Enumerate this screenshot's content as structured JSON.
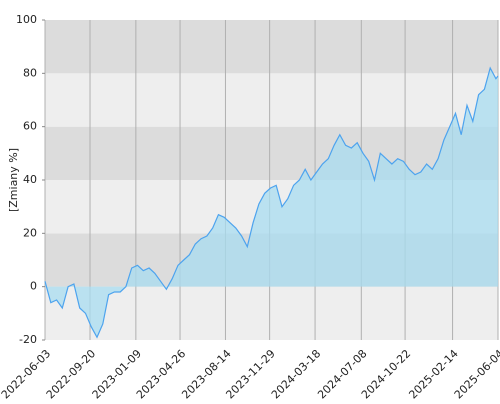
{
  "chart_data": {
    "type": "area",
    "y_label": "[Zmiany %]",
    "x": [
      "2022-06-03",
      "2022-06-17",
      "2022-07-01",
      "2022-07-15",
      "2022-07-29",
      "2022-08-12",
      "2022-08-26",
      "2022-09-09",
      "2022-09-23",
      "2022-10-07",
      "2022-10-21",
      "2022-11-04",
      "2022-11-18",
      "2022-12-02",
      "2022-12-16",
      "2022-12-30",
      "2023-01-13",
      "2023-01-27",
      "2023-02-10",
      "2023-02-24",
      "2023-03-10",
      "2023-03-24",
      "2023-04-07",
      "2023-04-21",
      "2023-05-05",
      "2023-05-19",
      "2023-06-02",
      "2023-06-16",
      "2023-06-30",
      "2023-07-14",
      "2023-07-28",
      "2023-08-11",
      "2023-08-25",
      "2023-09-08",
      "2023-09-22",
      "2023-10-06",
      "2023-10-20",
      "2023-11-03",
      "2023-11-17",
      "2023-12-01",
      "2023-12-15",
      "2023-12-29",
      "2024-01-12",
      "2024-01-26",
      "2024-02-09",
      "2024-02-23",
      "2024-03-08",
      "2024-03-22",
      "2024-04-05",
      "2024-04-19",
      "2024-05-03",
      "2024-05-17",
      "2024-05-31",
      "2024-06-14",
      "2024-06-28",
      "2024-07-12",
      "2024-07-26",
      "2024-08-09",
      "2024-08-23",
      "2024-09-06",
      "2024-09-20",
      "2024-10-04",
      "2024-10-18",
      "2024-11-01",
      "2024-11-15",
      "2024-11-29",
      "2024-12-13",
      "2024-12-27",
      "2025-01-10",
      "2025-01-24",
      "2025-02-07",
      "2025-02-21",
      "2025-03-07",
      "2025-03-21",
      "2025-04-04",
      "2025-04-18",
      "2025-05-02",
      "2025-05-16",
      "2025-05-30",
      "2025-06-04"
    ],
    "values": [
      2,
      -6,
      -5,
      -8,
      0,
      1,
      -8,
      -10,
      -15,
      -19,
      -14,
      -3,
      -2,
      -2,
      0,
      7,
      8,
      6,
      7,
      5,
      2,
      -1,
      3,
      8,
      10,
      12,
      16,
      18,
      19,
      22,
      27,
      26,
      24,
      22,
      19,
      15,
      24,
      31,
      35,
      37,
      38,
      30,
      33,
      38,
      40,
      44,
      40,
      43,
      46,
      48,
      53,
      57,
      53,
      52,
      54,
      50,
      47,
      40,
      50,
      48,
      46,
      48,
      47,
      44,
      42,
      43,
      46,
      44,
      48,
      55,
      60,
      65,
      57,
      68,
      62,
      72,
      74,
      82,
      78,
      79
    ],
    "line_color": "#4da3ee",
    "fill_color": "#a8dcf0",
    "xlim": [
      "2022-06-03",
      "2025-06-04"
    ],
    "xticks": [
      "2022-06-03",
      "2022-09-20",
      "2023-01-09",
      "2023-04-26",
      "2023-08-14",
      "2023-11-29",
      "2024-03-18",
      "2024-07-08",
      "2024-10-22",
      "2025-02-14",
      "2025-06-04"
    ],
    "ylim": [
      -20,
      100
    ],
    "yticks": [
      -20,
      0,
      20,
      40,
      60,
      80,
      100
    ],
    "grid": true
  }
}
